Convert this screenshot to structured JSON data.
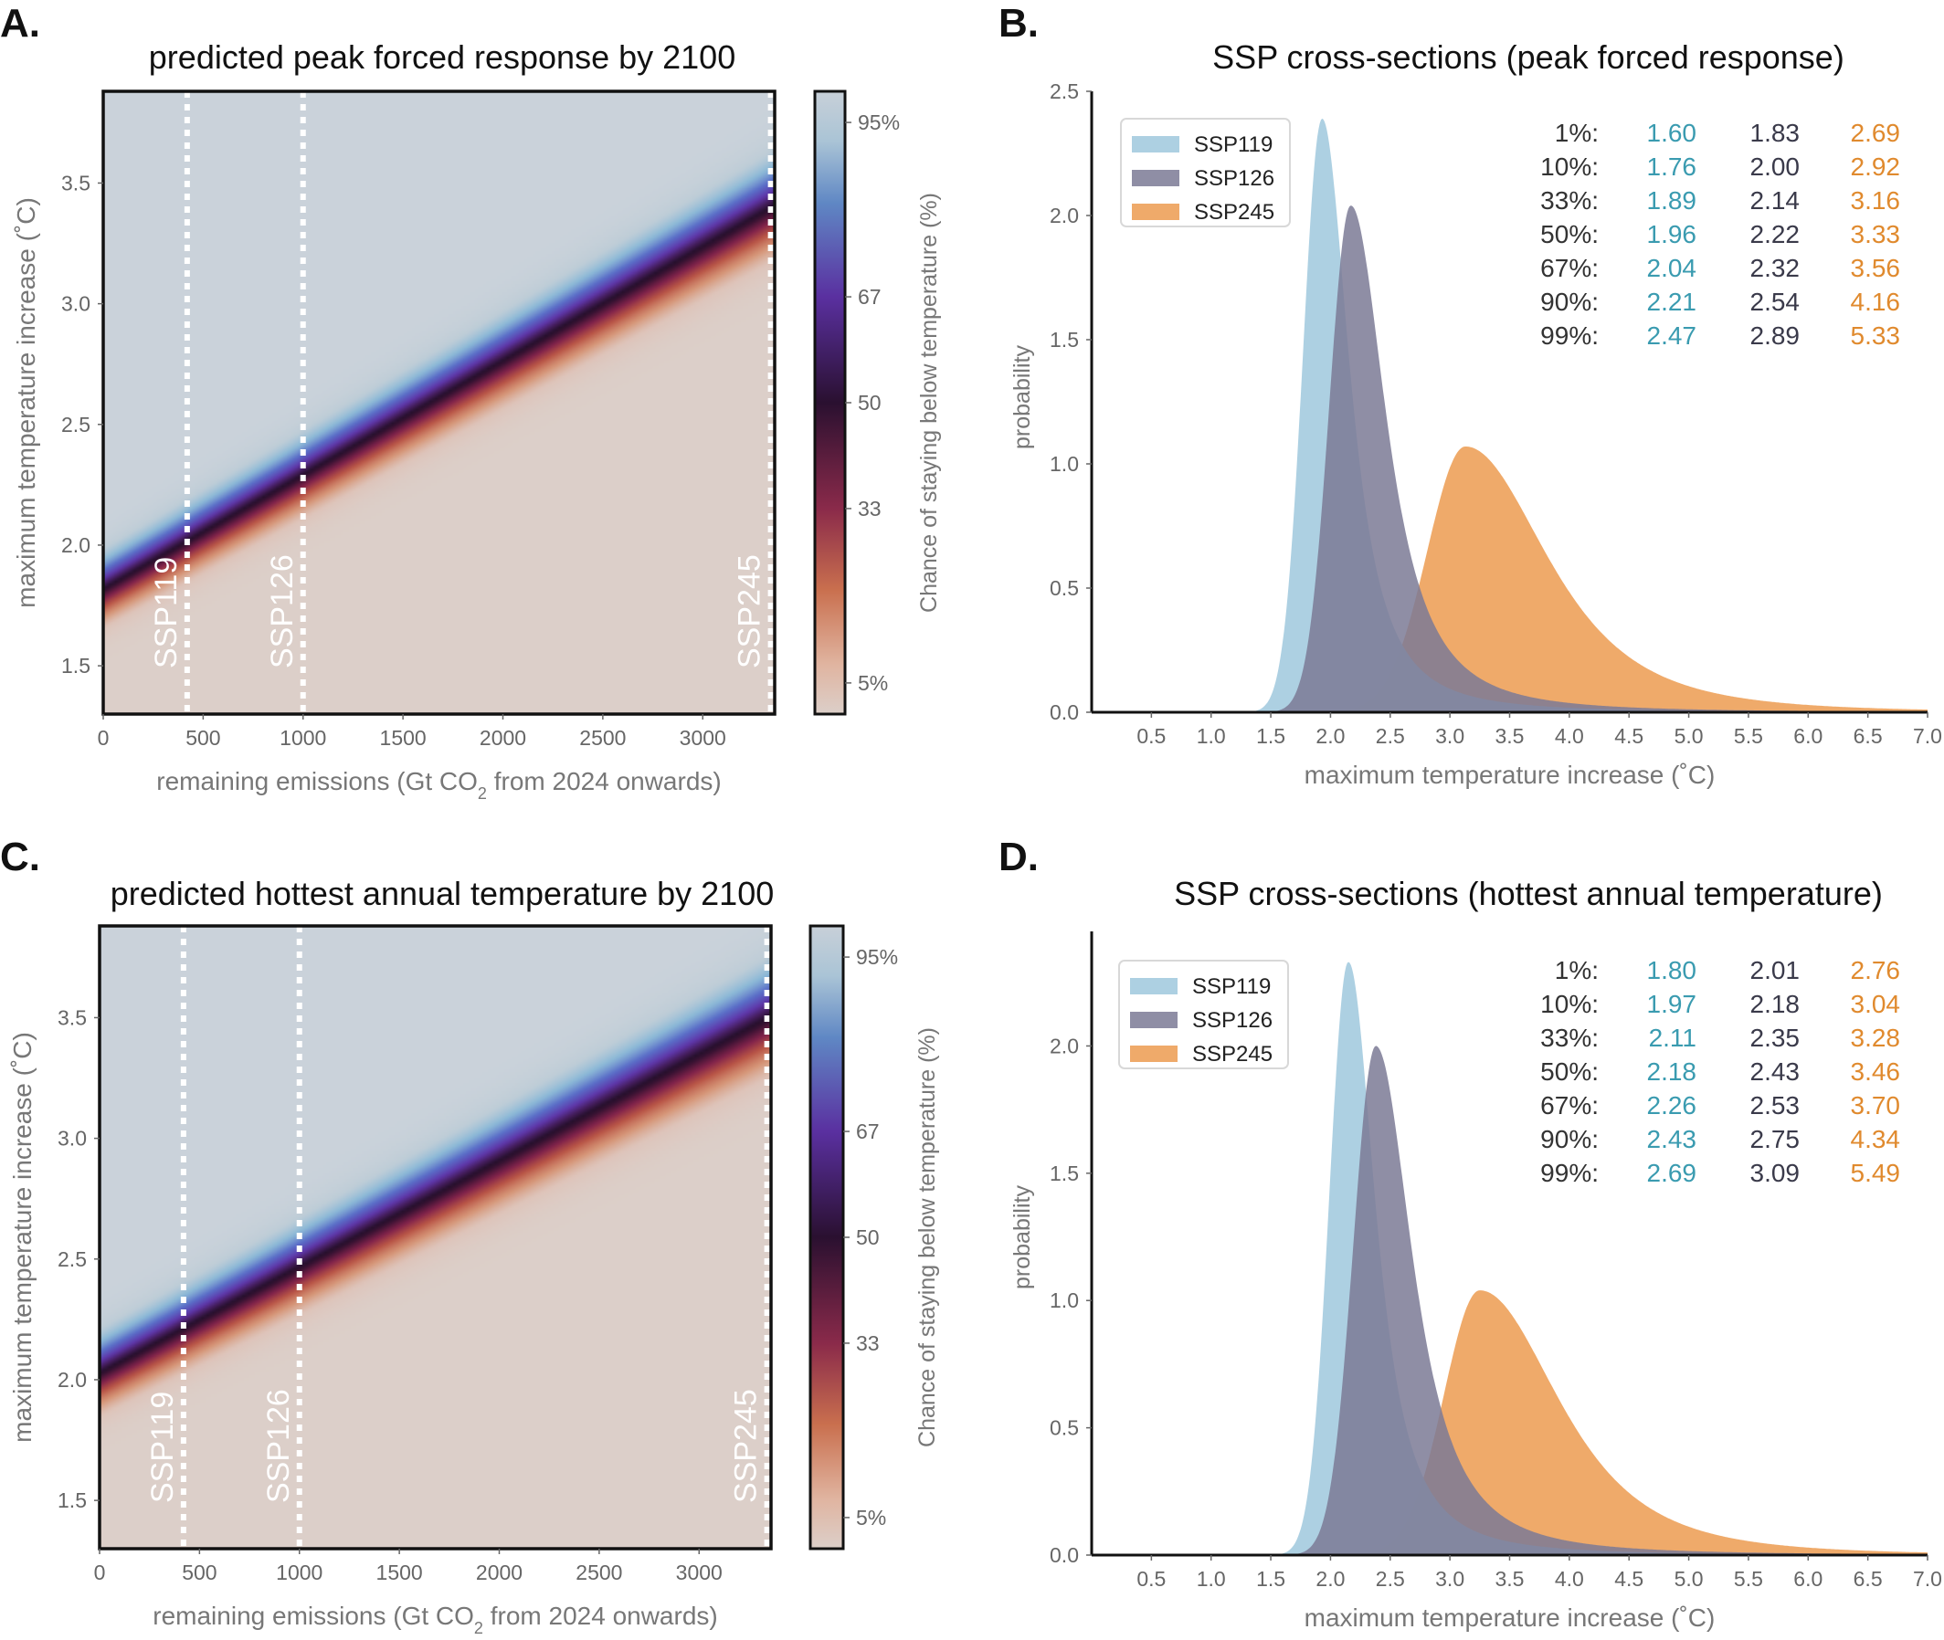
{
  "colors": {
    "ssp119": "#a9cde0",
    "ssp126": "#7b7a95",
    "ssp245": "#eda15a",
    "ssp119_text": "#3a9bb0",
    "ssp126_text": "#3a3a4a",
    "ssp245_text": "#e08a2e",
    "pct_text": "#333333"
  },
  "chart_data": [
    {
      "id": "A",
      "letter": "A.",
      "type": "heatmap",
      "title": "predicted peak forced response by 2100",
      "xlabel_main": "remaining emissions (Gt CO",
      "xlabel_sub": "2",
      "xlabel_rest": " from 2024 onwards)",
      "ylabel": "maximum temperature increase (˚C)",
      "xlim": [
        0,
        3360
      ],
      "ylim": [
        1.3,
        3.88
      ],
      "xticks": [
        0,
        500,
        1000,
        1500,
        2000,
        2500,
        3000
      ],
      "yticks": [
        1.5,
        2.0,
        2.5,
        3.0,
        3.5
      ],
      "ytick_labels": [
        "1.5",
        "2.0",
        "2.5",
        "3.0",
        "3.5"
      ],
      "colorbar_label": "Chance of staying below temperature (%)",
      "colorbar_ticks": [
        "95%",
        "67",
        "50",
        "33",
        "5%"
      ],
      "median_line": {
        "at_x0": 1.82,
        "slope_per_1000": 0.473
      },
      "spread": 0.1,
      "scenarios": [
        {
          "name": "SSP119",
          "x": 420
        },
        {
          "name": "SSP126",
          "x": 1000
        },
        {
          "name": "SSP245",
          "x": 3340
        }
      ]
    },
    {
      "id": "B",
      "letter": "B.",
      "type": "area",
      "title": "SSP cross-sections (peak forced response)",
      "xlabel": "maximum temperature increase (˚C)",
      "ylabel": "probability",
      "xlim": [
        0,
        7.0
      ],
      "ylim": [
        0,
        2.5
      ],
      "xticks": [
        "0.5",
        "1.0",
        "1.5",
        "2.0",
        "2.5",
        "3.0",
        "3.5",
        "4.0",
        "4.5",
        "5.0",
        "5.5",
        "6.0",
        "6.5",
        "7.0"
      ],
      "yticks": [
        "0.0",
        "0.5",
        "1.0",
        "1.5",
        "2.0",
        "2.5"
      ],
      "legend": [
        "SSP119",
        "SSP126",
        "SSP245"
      ],
      "series": [
        {
          "name": "SSP119",
          "peak_x": 1.93,
          "peak_y": 2.39,
          "w_left": 0.16,
          "w_right": 0.2,
          "tail": 1.3
        },
        {
          "name": "SSP126",
          "peak_x": 2.17,
          "peak_y": 2.04,
          "w_left": 0.18,
          "w_right": 0.26,
          "tail": 1.35
        },
        {
          "name": "SSP245",
          "peak_x": 3.13,
          "peak_y": 1.07,
          "w_left": 0.32,
          "w_right": 0.62,
          "tail": 1.9
        }
      ],
      "percentile_table": {
        "labels": [
          "1%:",
          "10%:",
          "33%:",
          "50%:",
          "67%:",
          "90%:",
          "99%:"
        ],
        "SSP119": [
          "1.60",
          "1.76",
          "1.89",
          "1.96",
          "2.04",
          "2.21",
          "2.47"
        ],
        "SSP126": [
          "1.83",
          "2.00",
          "2.14",
          "2.22",
          "2.32",
          "2.54",
          "2.89"
        ],
        "SSP245": [
          "2.69",
          "2.92",
          "3.16",
          "3.33",
          "3.56",
          "4.16",
          "5.33"
        ]
      }
    },
    {
      "id": "C",
      "letter": "C.",
      "type": "heatmap",
      "title": "predicted hottest annual temperature by 2100",
      "xlabel_main": "remaining emissions (Gt CO",
      "xlabel_sub": "2",
      "xlabel_rest": " from 2024 onwards)",
      "ylabel": "maximum temperature increase (˚C)",
      "xlim": [
        0,
        3360
      ],
      "ylim": [
        1.3,
        3.88
      ],
      "xticks": [
        0,
        500,
        1000,
        1500,
        2000,
        2500,
        3000
      ],
      "yticks": [
        1.5,
        2.0,
        2.5,
        3.0,
        3.5
      ],
      "ytick_labels": [
        "1.5",
        "2.0",
        "2.5",
        "3.0",
        "3.5"
      ],
      "colorbar_label": "Chance of staying below temperature (%)",
      "colorbar_ticks": [
        "95%",
        "67",
        "50",
        "33",
        "5%"
      ],
      "median_line": {
        "at_x0": 2.03,
        "slope_per_1000": 0.44
      },
      "spread": 0.11,
      "scenarios": [
        {
          "name": "SSP119",
          "x": 420
        },
        {
          "name": "SSP126",
          "x": 1000
        },
        {
          "name": "SSP245",
          "x": 3340
        }
      ]
    },
    {
      "id": "D",
      "letter": "D.",
      "type": "area",
      "title": "SSP cross-sections (hottest annual temperature)",
      "xlabel": "maximum temperature increase (˚C)",
      "ylabel": "probability",
      "xlim": [
        0,
        7.0
      ],
      "ylim": [
        0,
        2.45
      ],
      "xticks": [
        "0.5",
        "1.0",
        "1.5",
        "2.0",
        "2.5",
        "3.0",
        "3.5",
        "4.0",
        "4.5",
        "5.0",
        "5.5",
        "6.0",
        "6.5",
        "7.0"
      ],
      "yticks": [
        "0.0",
        "0.5",
        "1.0",
        "1.5",
        "2.0"
      ],
      "legend": [
        "SSP119",
        "SSP126",
        "SSP245"
      ],
      "series": [
        {
          "name": "SSP119",
          "peak_x": 2.15,
          "peak_y": 2.33,
          "w_left": 0.16,
          "w_right": 0.2,
          "tail": 1.3
        },
        {
          "name": "SSP126",
          "peak_x": 2.38,
          "peak_y": 2.0,
          "w_left": 0.19,
          "w_right": 0.27,
          "tail": 1.35
        },
        {
          "name": "SSP245",
          "peak_x": 3.25,
          "peak_y": 1.04,
          "w_left": 0.3,
          "w_right": 0.6,
          "tail": 1.9
        }
      ],
      "percentile_table": {
        "labels": [
          "1%:",
          "10%:",
          "33%:",
          "50%:",
          "67%:",
          "90%:",
          "99%:"
        ],
        "SSP119": [
          "1.80",
          "1.97",
          "2.11",
          "2.18",
          "2.26",
          "2.43",
          "2.69"
        ],
        "SSP126": [
          "2.01",
          "2.18",
          "2.35",
          "2.43",
          "2.53",
          "2.75",
          "3.09"
        ],
        "SSP245": [
          "2.76",
          "3.04",
          "3.28",
          "3.46",
          "3.70",
          "4.34",
          "5.49"
        ]
      }
    }
  ]
}
